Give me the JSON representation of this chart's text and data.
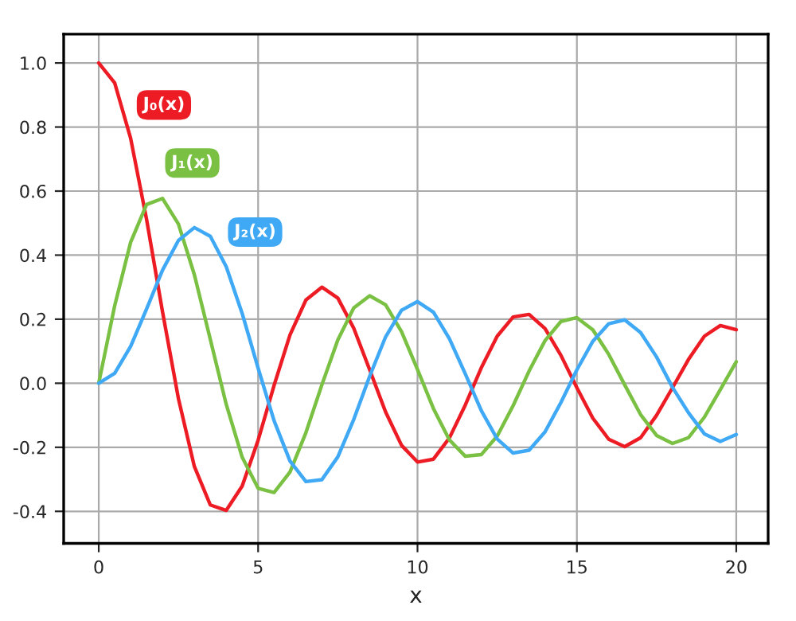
{
  "chart_data": {
    "type": "line",
    "xlabel": "x",
    "xlim": [
      -1.1,
      21
    ],
    "xticks": [
      0,
      5,
      10,
      15,
      20
    ],
    "ylim": [
      -0.5,
      1.09
    ],
    "yticks": [
      {
        "value": -0.4,
        "label": "-0.4"
      },
      {
        "value": -0.2,
        "label": "-0.2"
      },
      {
        "value": 0,
        "label": "0.0"
      },
      {
        "value": 0.2,
        "label": "0.2"
      },
      {
        "value": 0.4,
        "label": "0.4"
      },
      {
        "value": 0.6,
        "label": "0.6"
      },
      {
        "value": 0.8,
        "label": "0.8"
      },
      {
        "value": 1.0,
        "label": "1.0"
      }
    ],
    "grid": true,
    "x": [
      0,
      0.5,
      1,
      1.5,
      2,
      2.5,
      3,
      3.5,
      4,
      4.5,
      5,
      5.5,
      6,
      6.5,
      7,
      7.5,
      8,
      8.5,
      9,
      9.5,
      10,
      10.5,
      11,
      11.5,
      12,
      12.5,
      13,
      13.5,
      14,
      14.5,
      15,
      15.5,
      16,
      16.5,
      17,
      17.5,
      18,
      18.5,
      19,
      19.5,
      20
    ],
    "series": [
      {
        "name": "J₀(x)",
        "color": "#ed1c24",
        "values": [
          1.0,
          0.938,
          0.765,
          0.512,
          0.224,
          -0.048,
          -0.26,
          -0.38,
          -0.397,
          -0.321,
          -0.178,
          -0.007,
          0.151,
          0.26,
          0.3,
          0.266,
          0.172,
          0.042,
          -0.09,
          -0.194,
          -0.246,
          -0.237,
          -0.171,
          -0.068,
          0.048,
          0.147,
          0.207,
          0.215,
          0.171,
          0.087,
          -0.014,
          -0.109,
          -0.175,
          -0.198,
          -0.17,
          -0.1,
          -0.014,
          0.074,
          0.147,
          0.18,
          0.167
        ]
      },
      {
        "name": "J₁(x)",
        "color": "#7ac143",
        "values": [
          0,
          0.242,
          0.44,
          0.558,
          0.577,
          0.497,
          0.339,
          0.137,
          -0.066,
          -0.231,
          -0.328,
          -0.341,
          -0.277,
          -0.154,
          -0.005,
          0.135,
          0.235,
          0.273,
          0.245,
          0.161,
          0.043,
          -0.079,
          -0.177,
          -0.228,
          -0.223,
          -0.165,
          -0.07,
          0.038,
          0.133,
          0.193,
          0.205,
          0.167,
          0.09,
          -0.005,
          -0.098,
          -0.163,
          -0.188,
          -0.17,
          -0.106,
          -0.02,
          0.067
        ]
      },
      {
        "name": "J₂(x)",
        "color": "#3fa9f5",
        "values": [
          0,
          0.031,
          0.115,
          0.232,
          0.353,
          0.446,
          0.486,
          0.459,
          0.364,
          0.218,
          0.047,
          -0.117,
          -0.243,
          -0.307,
          -0.301,
          -0.23,
          -0.113,
          0.022,
          0.145,
          0.228,
          0.255,
          0.222,
          0.139,
          0.029,
          -0.085,
          -0.174,
          -0.218,
          -0.209,
          -0.152,
          -0.06,
          0.042,
          0.131,
          0.186,
          0.198,
          0.158,
          0.082,
          -0.013,
          -0.092,
          -0.158,
          -0.182,
          -0.16
        ]
      }
    ]
  }
}
